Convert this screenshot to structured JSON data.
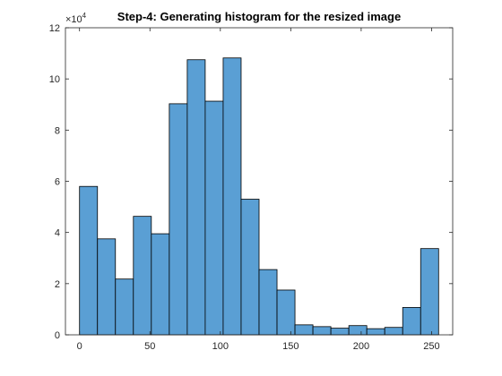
{
  "chart_data": {
    "type": "bar",
    "title": "Step-4: Generating histogram for the resized image",
    "xlabel": "",
    "ylabel": "",
    "x_range": [
      -10,
      265
    ],
    "ylim": [
      0,
      120000
    ],
    "y_exponent_label": {
      "base": "×10",
      "power": "4"
    },
    "x_ticks": [
      0,
      50,
      100,
      150,
      200,
      250
    ],
    "y_ticks": [
      0,
      20000,
      40000,
      60000,
      80000,
      100000,
      120000
    ],
    "y_tick_labels": [
      "0",
      "2",
      "4",
      "6",
      "8",
      "10",
      "12"
    ],
    "grid": false,
    "bar_color": "#5a9fd4",
    "edge_color": "#000000",
    "bin_edges": [
      0,
      12.75,
      25.5,
      38.25,
      51,
      63.75,
      76.5,
      89.25,
      102,
      114.75,
      127.5,
      140.25,
      153,
      165.75,
      178.5,
      191.25,
      204,
      216.75,
      229.5,
      242.25,
      255
    ],
    "values": [
      58000,
      37500,
      21800,
      46300,
      39500,
      90300,
      107500,
      91300,
      108200,
      53000,
      25500,
      17500,
      3900,
      3200,
      2600,
      3600,
      2400,
      2900,
      10700,
      33700
    ]
  }
}
